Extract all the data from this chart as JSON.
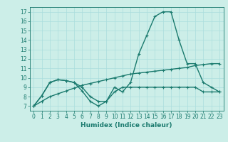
{
  "x": [
    0,
    1,
    2,
    3,
    4,
    5,
    6,
    7,
    8,
    9,
    10,
    11,
    12,
    13,
    14,
    15,
    16,
    17,
    18,
    19,
    20,
    21,
    22,
    23
  ],
  "line1": [
    7.0,
    8.1,
    9.5,
    9.8,
    9.7,
    9.5,
    8.6,
    7.5,
    7.0,
    7.5,
    9.0,
    8.5,
    9.5,
    12.5,
    14.5,
    16.5,
    17.0,
    17.0,
    14.0,
    11.5,
    11.5,
    9.5,
    9.0,
    8.5
  ],
  "line2": [
    7.0,
    7.5,
    8.0,
    8.3,
    8.6,
    8.9,
    9.2,
    9.4,
    9.6,
    9.8,
    10.0,
    10.2,
    10.4,
    10.5,
    10.6,
    10.7,
    10.8,
    10.9,
    11.0,
    11.1,
    11.3,
    11.4,
    11.5,
    11.5
  ],
  "line3": [
    7.0,
    8.1,
    9.5,
    9.8,
    9.7,
    9.5,
    9.0,
    8.0,
    7.5,
    7.5,
    8.5,
    9.0,
    9.0,
    9.0,
    9.0,
    9.0,
    9.0,
    9.0,
    9.0,
    9.0,
    9.0,
    8.5,
    8.5,
    8.5
  ],
  "color": "#1a7a6e",
  "bg_color": "#cceee8",
  "grid_color": "#aadddd",
  "xlabel": "Humidex (Indice chaleur)",
  "xlim": [
    -0.5,
    23.5
  ],
  "ylim": [
    6.5,
    17.5
  ],
  "yticks": [
    7,
    8,
    9,
    10,
    11,
    12,
    13,
    14,
    15,
    16,
    17
  ],
  "xticks": [
    0,
    1,
    2,
    3,
    4,
    5,
    6,
    7,
    8,
    9,
    10,
    11,
    12,
    13,
    14,
    15,
    16,
    17,
    18,
    19,
    20,
    21,
    22,
    23
  ]
}
